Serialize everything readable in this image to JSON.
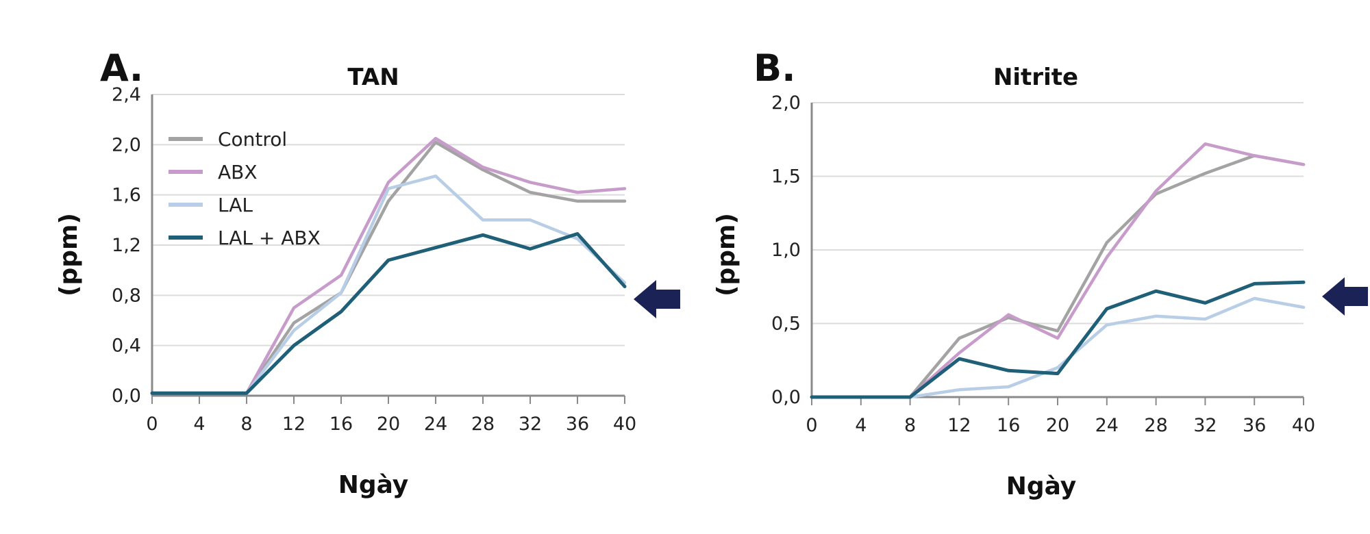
{
  "colors": {
    "Control": "#a3a3a3",
    "ABX": "#c79ccb",
    "LAL": "#b8cde6",
    "LAL + ABX": "#1f5f78",
    "arrow": "#1b2356",
    "grid": "#dcdcdc",
    "axis": "#8a8a8a"
  },
  "chart_data": [
    {
      "type": "line",
      "panel_label": "A.",
      "title": "TAN",
      "xlabel": "Ngày",
      "ylabel": "(ppm)",
      "x": [
        0,
        4,
        8,
        12,
        16,
        20,
        24,
        28,
        32,
        36,
        40
      ],
      "x_ticks": [
        "0",
        "4",
        "8",
        "12",
        "16",
        "20",
        "24",
        "28",
        "32",
        "36",
        "40"
      ],
      "xlim": [
        0,
        40
      ],
      "ylim": [
        0,
        2.4
      ],
      "y_ticks": [
        "0,0",
        "0,4",
        "0,8",
        "1,2",
        "1,6",
        "2,0",
        "2,4"
      ],
      "y_tick_values": [
        0,
        0.4,
        0.8,
        1.2,
        1.6,
        2.0,
        2.4
      ],
      "grid": true,
      "legend": {
        "position": "top-left",
        "entries": [
          "Control",
          "ABX",
          "LAL",
          "LAL + ABX"
        ]
      },
      "annotation": "arrow at right pointing to LAL + ABX",
      "series": [
        {
          "name": "Control",
          "values": [
            0.02,
            0.02,
            0.02,
            0.58,
            0.82,
            1.55,
            2.02,
            1.8,
            1.62,
            1.55,
            1.55
          ]
        },
        {
          "name": "ABX",
          "values": [
            0.02,
            0.02,
            0.02,
            0.7,
            0.96,
            1.7,
            2.05,
            1.82,
            1.7,
            1.62,
            1.65
          ]
        },
        {
          "name": "LAL",
          "values": [
            0.02,
            0.02,
            0.02,
            0.52,
            0.82,
            1.65,
            1.75,
            1.4,
            1.4,
            1.25,
            0.9
          ]
        },
        {
          "name": "LAL + ABX",
          "values": [
            0.02,
            0.02,
            0.02,
            0.4,
            0.67,
            1.08,
            1.18,
            1.28,
            1.17,
            1.29,
            0.87
          ]
        }
      ]
    },
    {
      "type": "line",
      "panel_label": "B.",
      "title": "Nitrite",
      "xlabel": "Ngày",
      "ylabel": "(ppm)",
      "x": [
        0,
        4,
        8,
        12,
        16,
        20,
        24,
        28,
        32,
        36,
        40
      ],
      "x_ticks": [
        "0",
        "4",
        "8",
        "12",
        "16",
        "20",
        "24",
        "28",
        "32",
        "36",
        "40"
      ],
      "xlim": [
        0,
        40
      ],
      "ylim": [
        0,
        2.0
      ],
      "y_ticks": [
        "0,0",
        "0,5",
        "1,0",
        "1,5",
        "2,0"
      ],
      "y_tick_values": [
        0,
        0.5,
        1.0,
        1.5,
        2.0
      ],
      "grid": true,
      "annotation": "arrow at right pointing to LAL + ABX",
      "series": [
        {
          "name": "Control",
          "values": [
            0.0,
            0.0,
            0.0,
            0.4,
            0.54,
            0.45,
            1.05,
            1.38,
            1.52,
            1.64,
            1.58
          ]
        },
        {
          "name": "ABX",
          "values": [
            0.0,
            0.0,
            0.0,
            0.3,
            0.56,
            0.4,
            0.95,
            1.4,
            1.72,
            1.64,
            1.58
          ]
        },
        {
          "name": "LAL",
          "values": [
            0.0,
            0.0,
            0.0,
            0.05,
            0.07,
            0.2,
            0.49,
            0.55,
            0.53,
            0.67,
            0.61
          ]
        },
        {
          "name": "LAL + ABX",
          "values": [
            0.0,
            0.0,
            0.0,
            0.26,
            0.18,
            0.16,
            0.6,
            0.72,
            0.64,
            0.77,
            0.78
          ]
        }
      ]
    }
  ]
}
